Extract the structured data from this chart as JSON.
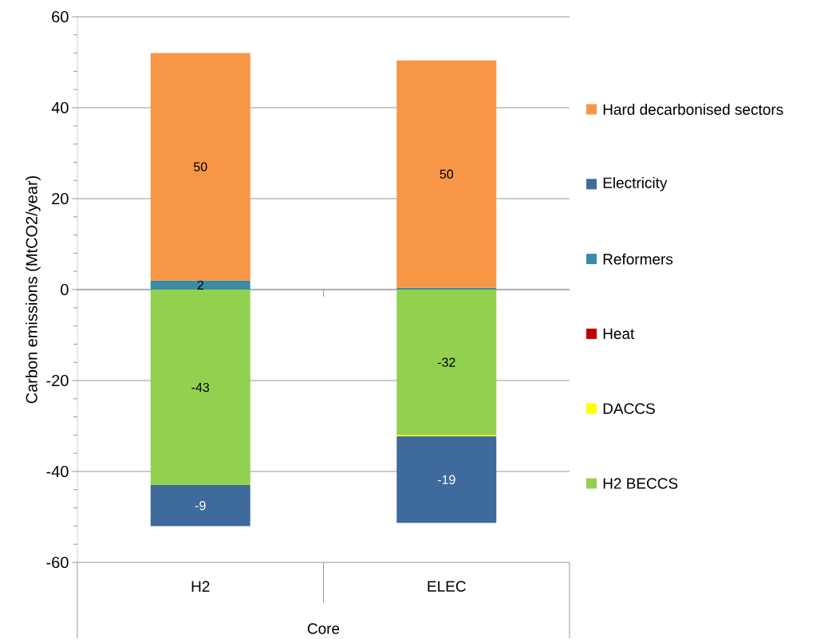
{
  "chart_data": {
    "type": "bar",
    "stacked": true,
    "ylabel": "Carbon emissions (MtCO2/year)",
    "xlabel": "Core",
    "categories": [
      "H2",
      "ELEC"
    ],
    "series": [
      {
        "name": "H2 BECCS",
        "color": "#92d050",
        "values": [
          -43,
          -32
        ],
        "value_labels": [
          "-43",
          "-32"
        ]
      },
      {
        "name": "DACCS",
        "color": "#ffff00",
        "values": [
          0,
          -0.3
        ],
        "value_labels": [
          null,
          null
        ]
      },
      {
        "name": "Heat",
        "color": "#c00000",
        "values": [
          0,
          0
        ],
        "value_labels": [
          null,
          null
        ]
      },
      {
        "name": "Reformers",
        "color": "#3a8ca4",
        "values": [
          2,
          0.4
        ],
        "value_labels": [
          "2",
          null
        ]
      },
      {
        "name": "Electricity",
        "color": "#3e6a9c",
        "values": [
          -9,
          -19
        ],
        "value_labels": [
          "-9",
          "-19"
        ]
      },
      {
        "name": "Hard decarbonised sectors",
        "color": "#f79646",
        "values": [
          50,
          50
        ],
        "value_labels": [
          "50",
          "50"
        ]
      }
    ],
    "ylim": [
      -60,
      60
    ],
    "yticks": [
      -60,
      -40,
      -20,
      0,
      20,
      40,
      60
    ],
    "grid": "y",
    "legend": "right"
  }
}
